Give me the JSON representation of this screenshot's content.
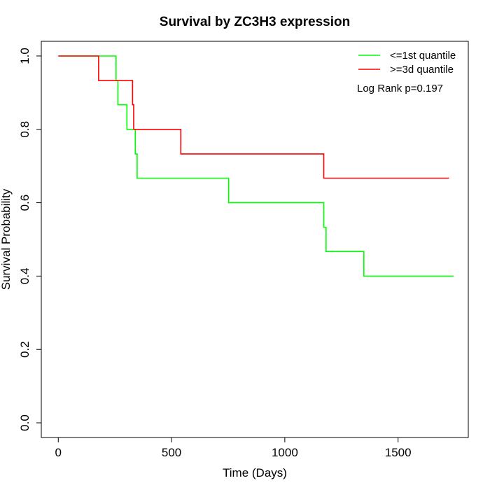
{
  "chart_data": {
    "type": "line",
    "title": "Survival by ZC3H3 expression",
    "xlabel": "Time (Days)",
    "ylabel": "Survival Probability",
    "xlim": [
      -75,
      1810
    ],
    "ylim": [
      -0.04,
      1.04
    ],
    "x_ticks": [
      0,
      500,
      1000,
      1500
    ],
    "x_tick_labels": [
      "0",
      "500",
      "1000",
      "1500"
    ],
    "y_ticks": [
      0.0,
      0.2,
      0.4,
      0.6,
      0.8,
      1.0
    ],
    "y_tick_labels": [
      "0.0",
      "0.2",
      "0.4",
      "0.6",
      "0.8",
      "1.0"
    ],
    "grid": false,
    "legend_position": "top-right",
    "annotation": "Log Rank p=0.197",
    "series": [
      {
        "name": "<=1st quantile",
        "color": "#00ff00",
        "step_points": [
          [
            0,
            1.0
          ],
          [
            255,
            1.0
          ],
          [
            255,
            0.933
          ],
          [
            263,
            0.933
          ],
          [
            263,
            0.867
          ],
          [
            303,
            0.867
          ],
          [
            303,
            0.8
          ],
          [
            340,
            0.8
          ],
          [
            340,
            0.733
          ],
          [
            348,
            0.733
          ],
          [
            348,
            0.667
          ],
          [
            752,
            0.667
          ],
          [
            752,
            0.6
          ],
          [
            1172,
            0.6
          ],
          [
            1172,
            0.533
          ],
          [
            1182,
            0.533
          ],
          [
            1182,
            0.467
          ],
          [
            1349,
            0.467
          ],
          [
            1349,
            0.4
          ],
          [
            1745,
            0.4
          ]
        ]
      },
      {
        "name": ">=3d quantile",
        "color": "#ff0000",
        "step_points": [
          [
            0,
            1.0
          ],
          [
            178,
            1.0
          ],
          [
            178,
            0.933
          ],
          [
            328,
            0.933
          ],
          [
            328,
            0.867
          ],
          [
            333,
            0.867
          ],
          [
            333,
            0.8
          ],
          [
            541,
            0.8
          ],
          [
            541,
            0.733
          ],
          [
            1172,
            0.733
          ],
          [
            1172,
            0.667
          ],
          [
            1725,
            0.667
          ]
        ]
      }
    ]
  }
}
